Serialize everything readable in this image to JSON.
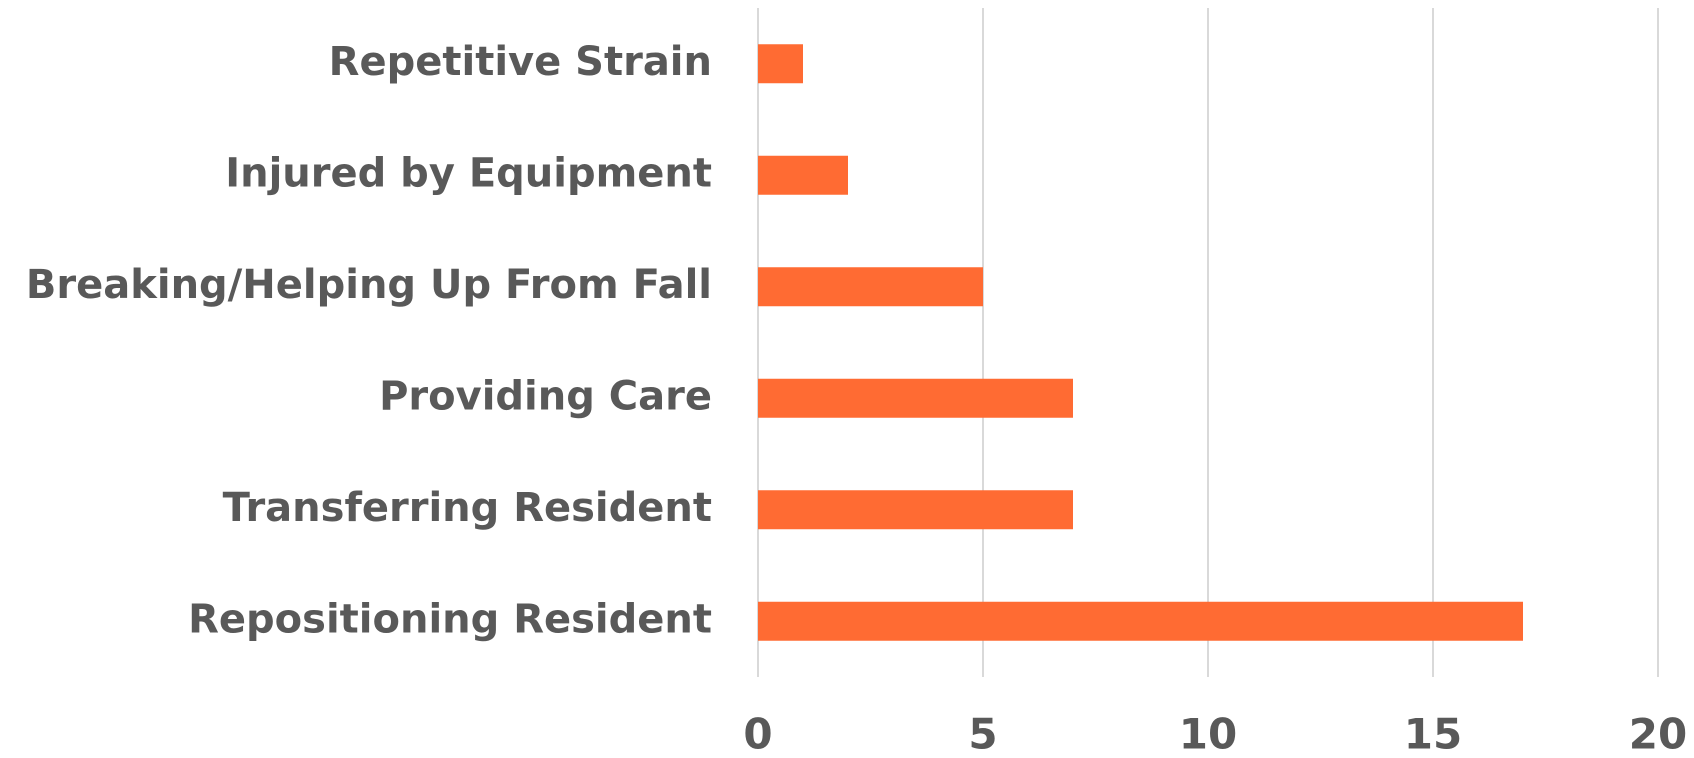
{
  "chart_data": {
    "type": "bar",
    "orientation": "horizontal",
    "categories": [
      "Repetitive Strain",
      "Injured by Equipment",
      "Breaking/Helping Up From Fall",
      "Providing Care",
      "Transferring Resident",
      "Repositioning Resident"
    ],
    "values": [
      1,
      2,
      5,
      7,
      7,
      17
    ],
    "color": "#ff6b33",
    "xlim": [
      0,
      20
    ],
    "xticks": [
      0,
      5,
      10,
      15,
      20
    ],
    "grid": true
  }
}
